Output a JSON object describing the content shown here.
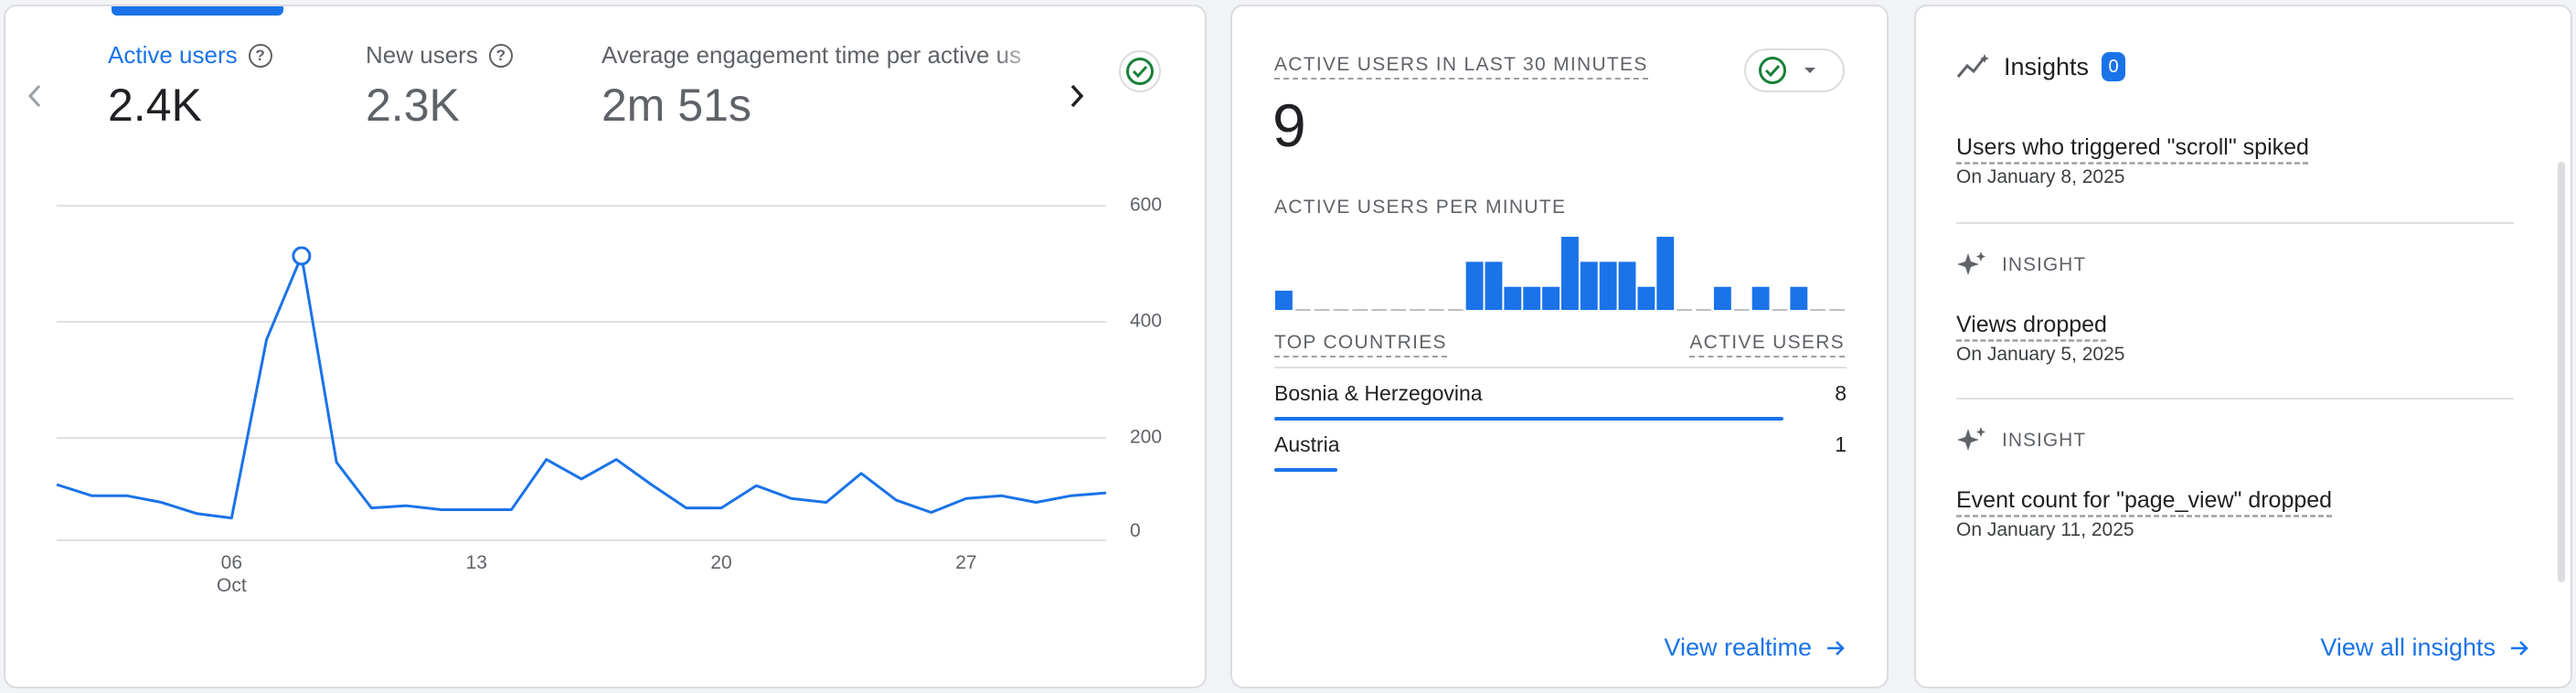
{
  "overview": {
    "metrics": [
      {
        "label": "Active users",
        "value": "2.4K",
        "active": true
      },
      {
        "label": "New users",
        "value": "2.3K",
        "active": false
      },
      {
        "label": "Average engagement time per active us",
        "value": "2m 51s",
        "active": false
      }
    ],
    "colors": {
      "accent": "#1a73e8",
      "status_ok": "#188038"
    },
    "icons": {
      "prev": "chevron-left-icon",
      "next": "chevron-right-icon",
      "status": "check-circle-icon"
    }
  },
  "chart_data": {
    "type": "line",
    "series": [
      {
        "values": [
          100,
          80,
          80,
          68,
          48,
          40,
          360,
          510,
          140,
          58,
          62,
          55,
          55,
          55,
          145,
          110,
          145,
          100,
          58,
          58,
          98,
          75,
          68,
          120,
          72,
          50,
          75,
          80,
          68,
          80,
          85
        ]
      }
    ],
    "x_ticks": [
      {
        "label": "06",
        "sublabel": "Oct",
        "index": 5
      },
      {
        "label": "13",
        "index": 12
      },
      {
        "label": "20",
        "index": 19
      },
      {
        "label": "27",
        "index": 26
      }
    ],
    "y_ticks": [
      "600",
      "400",
      "200",
      "0"
    ],
    "ylim": [
      0,
      600
    ],
    "highlight_index": 7,
    "grid": true
  },
  "realtime": {
    "title": "ACTIVE USERS IN LAST 30 MINUTES",
    "value": "9",
    "per_minute_label": "ACTIVE USERS PER MINUTE",
    "per_minute": [
      1,
      0,
      0,
      0,
      0,
      0,
      0,
      0,
      0,
      0,
      2.5,
      2.5,
      1.2,
      1.2,
      1.2,
      3.8,
      2.5,
      2.5,
      2.5,
      1.2,
      3.8,
      0,
      0,
      1.2,
      0,
      1.2,
      0,
      1.2,
      0,
      0
    ],
    "countries_header": "TOP COUNTRIES",
    "users_header": "ACTIVE USERS",
    "countries": [
      {
        "name": "Bosnia & Herzegovina",
        "count": "8",
        "share": 0.89
      },
      {
        "name": "Austria",
        "count": "1",
        "share": 0.11
      }
    ],
    "link": "View realtime"
  },
  "insights": {
    "title": "Insights",
    "count": "0",
    "items": [
      {
        "tag": "",
        "title": "Users who triggered \"scroll\" spiked",
        "date": "On January 8, 2025"
      },
      {
        "tag": "INSIGHT",
        "title": "Views dropped",
        "date": "On January 5, 2025"
      },
      {
        "tag": "INSIGHT",
        "title": "Event count for \"page_view\" dropped",
        "date": "On January 11, 2025"
      }
    ],
    "link": "View all insights"
  }
}
